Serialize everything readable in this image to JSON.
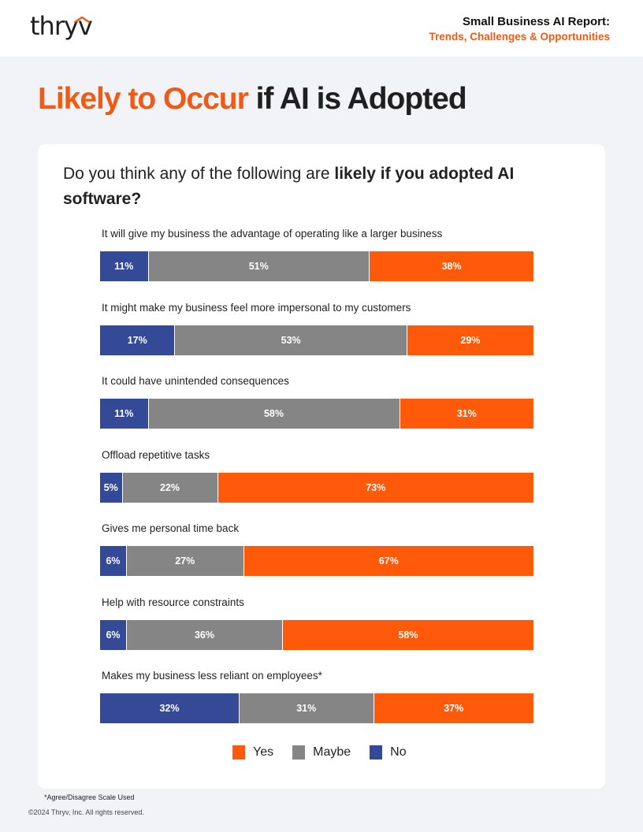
{
  "header": {
    "logo_text": "thryv",
    "report_title_line1": "Small Business AI Report:",
    "report_title_line2": "Trends, Challenges & Opportunities"
  },
  "page": {
    "heading_highlight": "Likely to Occur",
    "heading_rest": " if AI is Adopted"
  },
  "question": {
    "part1": "Do you think any of the following are ",
    "part2_bold": "likely if you adopted AI software?"
  },
  "colors": {
    "no": "#344a97",
    "maybe": "#858585",
    "yes": "#ff5a0a",
    "accent": "#f05a14"
  },
  "chart_data": {
    "type": "bar",
    "orientation": "horizontal-stacked-100",
    "categories": [
      "It will give my business the advantage of operating like a larger business",
      "It might make my business feel more impersonal to my customers",
      "It could have unintended consequences",
      "Offload repetitive tasks",
      "Gives me personal time back",
      "Help with resource constraints",
      "Makes my business less reliant on employees*"
    ],
    "series": [
      {
        "name": "No",
        "values": [
          11,
          17,
          11,
          5,
          6,
          6,
          32
        ]
      },
      {
        "name": "Maybe",
        "values": [
          51,
          53,
          58,
          22,
          27,
          36,
          31
        ]
      },
      {
        "name": "Yes",
        "values": [
          38,
          29,
          31,
          73,
          67,
          58,
          37
        ]
      }
    ],
    "data_labels": [
      [
        "11%",
        "51%",
        "38%"
      ],
      [
        "17%",
        "53%",
        "29%"
      ],
      [
        "11%",
        "58%",
        "31%"
      ],
      [
        "5%",
        "22%",
        "73%"
      ],
      [
        "6%",
        "27%",
        "67%"
      ],
      [
        "6%",
        "36%",
        "58%"
      ],
      [
        "32%",
        "31%",
        "37%"
      ]
    ],
    "legend": [
      "Yes",
      "Maybe",
      "No"
    ],
    "legend_position": "bottom-center",
    "title": "",
    "xlabel": "",
    "ylabel": "",
    "grid": false
  },
  "footer": {
    "footnote": "*Agree/Disagree Scale Used",
    "copyright": "©2024 Thryv, Inc. All rights reserved."
  }
}
